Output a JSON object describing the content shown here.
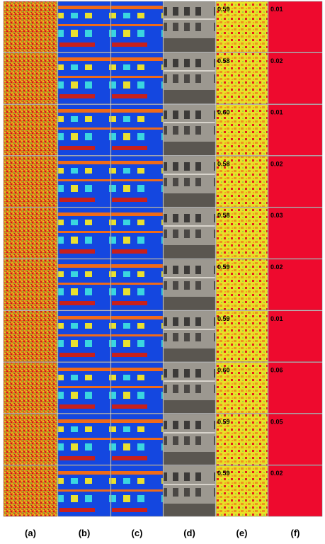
{
  "figure": {
    "column_labels": [
      "(a)",
      "(b)",
      "(c)",
      "(d)",
      "(e)",
      "(f)"
    ],
    "rows": [
      {
        "e_score": "0.59",
        "f_score": "0.01"
      },
      {
        "e_score": "0.58",
        "f_score": "0.02"
      },
      {
        "e_score": "0.60",
        "f_score": "0.01"
      },
      {
        "e_score": "0.58",
        "f_score": "0.02"
      },
      {
        "e_score": "0.58",
        "f_score": "0.03"
      },
      {
        "e_score": "0.59",
        "f_score": "0.02"
      },
      {
        "e_score": "0.59",
        "f_score": "0.01"
      },
      {
        "e_score": "0.60",
        "f_score": "0.06"
      },
      {
        "e_score": "0.59",
        "f_score": "0.05"
      },
      {
        "e_score": "0.59",
        "f_score": "0.02"
      }
    ]
  }
}
